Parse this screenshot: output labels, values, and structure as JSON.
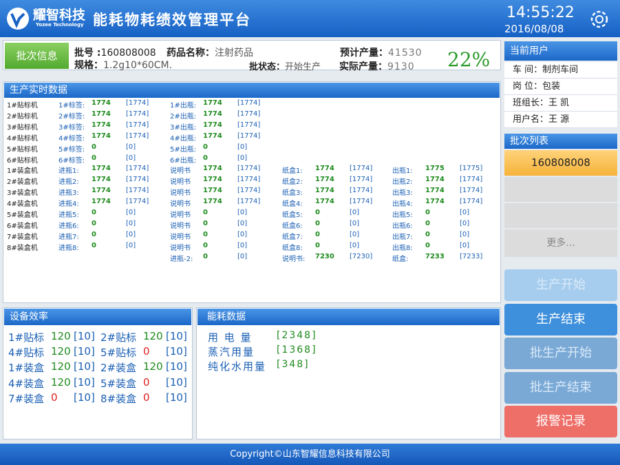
{
  "header": {
    "logo_text": "耀智科技",
    "logo_subtext": "Yozee Technology",
    "title": "能耗物耗绩效管理平台",
    "time": "14:55:22",
    "date": "2016/08/08"
  },
  "batch": {
    "title": "批次信息",
    "batch_no_label": "批号 :",
    "batch_no": "160808008",
    "drug_label": "药品名称：",
    "drug": "注射药品",
    "planned_label": "预计产量：",
    "planned": 41530,
    "spec_label": "规格：",
    "spec": "1.2g10*60CM.",
    "status_label": "批状态：",
    "status": "开始生产",
    "actual_label": "实际产量：",
    "actual": 9130,
    "progress": "22%"
  },
  "production": {
    "title": "生产实时数据",
    "rows": [
      {
        "name": "1#贴标机",
        "cells": [
          {
            "label": "1#标签:",
            "value": 1774,
            "total": "[1774]"
          },
          {
            "label": "1#出瓶:",
            "value": 1774,
            "total": "[1774]"
          }
        ]
      },
      {
        "name": "2#贴标机",
        "cells": [
          {
            "label": "2#标签:",
            "value": 1774,
            "total": "[1774]"
          },
          {
            "label": "2#出瓶:",
            "value": 1774,
            "total": "[1774]"
          }
        ]
      },
      {
        "name": "3#贴标机",
        "cells": [
          {
            "label": "3#标签:",
            "value": 1774,
            "total": "[1774]"
          },
          {
            "label": "3#出瓶:",
            "value": 1774,
            "total": "[1774]"
          }
        ]
      },
      {
        "name": "4#贴标机",
        "cells": [
          {
            "label": "4#标签:",
            "value": 1774,
            "total": "[1774]"
          },
          {
            "label": "4#出瓶:",
            "value": 1774,
            "total": "[1774]"
          }
        ]
      },
      {
        "name": "5#贴标机",
        "cells": [
          {
            "label": "5#标签:",
            "value": 0,
            "total": "[0]"
          },
          {
            "label": "5#出瓶:",
            "value": 0,
            "total": "[0]"
          }
        ]
      },
      {
        "name": "6#贴标机",
        "cells": [
          {
            "label": "6#标签:",
            "value": 0,
            "total": "[0]"
          },
          {
            "label": "6#出瓶:",
            "value": 0,
            "total": "[0]"
          }
        ]
      },
      {
        "name": "1#装盒机",
        "cells": [
          {
            "label": "进瓶1:",
            "value": 1774,
            "total": "[1774]"
          },
          {
            "label": "说明书",
            "value": 1774,
            "total": "[1774]"
          },
          {
            "label": "纸盒1:",
            "value": 1774,
            "total": "[1774]"
          },
          {
            "label": "出瓶1:",
            "value": 1775,
            "total": "[1775]"
          }
        ]
      },
      {
        "name": "2#装盒机",
        "cells": [
          {
            "label": "进瓶2:",
            "value": 1774,
            "total": "[1774]"
          },
          {
            "label": "说明书",
            "value": 1774,
            "total": "[1774]"
          },
          {
            "label": "纸盒2:",
            "value": 1774,
            "total": "[1774]"
          },
          {
            "label": "出瓶2:",
            "value": 1774,
            "total": "[1774]"
          }
        ]
      },
      {
        "name": "3#装盒机",
        "cells": [
          {
            "label": "进瓶3:",
            "value": 1774,
            "total": "[1774]"
          },
          {
            "label": "说明书",
            "value": 1774,
            "total": "[1774]"
          },
          {
            "label": "纸盒3:",
            "value": 1774,
            "total": "[1774]"
          },
          {
            "label": "出瓶3:",
            "value": 1774,
            "total": "[1774]"
          }
        ]
      },
      {
        "name": "4#装盒机",
        "cells": [
          {
            "label": "进瓶4:",
            "value": 1774,
            "total": "[1774]"
          },
          {
            "label": "说明书",
            "value": 1774,
            "total": "[1774]"
          },
          {
            "label": "纸盒4:",
            "value": 1774,
            "total": "[1774]"
          },
          {
            "label": "出瓶4:",
            "value": 1774,
            "total": "[1774]"
          }
        ]
      },
      {
        "name": "5#装盒机",
        "cells": [
          {
            "label": "进瓶5:",
            "value": 0,
            "total": "[0]"
          },
          {
            "label": "说明书",
            "value": 0,
            "total": "[0]"
          },
          {
            "label": "纸盒5:",
            "value": 0,
            "total": "[0]"
          },
          {
            "label": "出瓶5:",
            "value": 0,
            "total": "[0]"
          }
        ]
      },
      {
        "name": "6#装盒机",
        "cells": [
          {
            "label": "进瓶6:",
            "value": 0,
            "total": "[0]"
          },
          {
            "label": "说明书",
            "value": 0,
            "total": "[0]"
          },
          {
            "label": "纸盒6:",
            "value": 0,
            "total": "[0]"
          },
          {
            "label": "出瓶6:",
            "value": 0,
            "total": "[0]"
          }
        ]
      },
      {
        "name": "7#装盒机",
        "cells": [
          {
            "label": "进瓶7:",
            "value": 0,
            "total": "[0]"
          },
          {
            "label": "说明书",
            "value": 0,
            "total": "[0]"
          },
          {
            "label": "纸盒7:",
            "value": 0,
            "total": "[0]"
          },
          {
            "label": "出瓶7:",
            "value": 0,
            "total": "[0]"
          }
        ]
      },
      {
        "name": "8#装盒机",
        "cells": [
          {
            "label": "进瓶8:",
            "value": 0,
            "total": "[0]"
          },
          {
            "label": "说明书",
            "value": 0,
            "total": "[0]"
          },
          {
            "label": "纸盒8:",
            "value": 0,
            "total": "[0]"
          },
          {
            "label": "出瓶8:",
            "value": 0,
            "total": "[0]"
          }
        ]
      },
      {
        "name": null,
        "cells": [
          null,
          {
            "label": "进瓶-2:",
            "value": 0,
            "total": "[0]"
          },
          {
            "label": "说明书:",
            "value": 7230,
            "total": "[7230]"
          },
          {
            "label": "纸盒:",
            "value": 7233,
            "total": "[7233]"
          }
        ]
      }
    ]
  },
  "efficiency": {
    "title": "设备效率",
    "rows": [
      [
        {
          "label": "1#贴标",
          "value": 120,
          "total": "[10]"
        },
        {
          "label": "2#贴标",
          "value": 120,
          "total": "[10]"
        }
      ],
      [
        {
          "label": "4#贴标",
          "value": 120,
          "total": "[10]"
        },
        {
          "label": "5#贴标",
          "value": 0,
          "total": "[10]"
        }
      ],
      [
        {
          "label": "1#装盒",
          "value": 120,
          "total": "[10]"
        },
        {
          "label": "2#装盒",
          "value": 120,
          "total": "[10]"
        }
      ],
      [
        {
          "label": "4#装盒",
          "value": 120,
          "total": "[10]"
        },
        {
          "label": "5#装盒",
          "value": 0,
          "total": "[10]"
        }
      ],
      [
        {
          "label": "7#装盒",
          "value": 0,
          "total": "[10]"
        },
        {
          "label": "8#装盒",
          "value": 0,
          "total": "[10]"
        }
      ]
    ]
  },
  "energy": {
    "title": "能耗数据",
    "rows": [
      {
        "label": "用 电 量",
        "value": "[2348]"
      },
      {
        "label": "蒸汽用量",
        "value": "[1368]"
      },
      {
        "label": "纯化水用量",
        "value": "[348]"
      }
    ]
  },
  "user": {
    "title": "当前用户",
    "rows": [
      {
        "label": "车 间：",
        "value": "制剂车间"
      },
      {
        "label": "岗 位：",
        "value": "包装"
      },
      {
        "label": "班组长：",
        "value": "王 凯"
      },
      {
        "label": "用户名：",
        "value": "王 源"
      }
    ]
  },
  "batch_list": {
    "title": "批次列表",
    "items": [
      "160808008"
    ],
    "more": "更多..."
  },
  "buttons": [
    "生产开始",
    "生产结束",
    "批生产开始",
    "批生产结束",
    "报警记录"
  ],
  "footer": {
    "copyright": "Copyright©山东智耀信息科技有限公司"
  }
}
